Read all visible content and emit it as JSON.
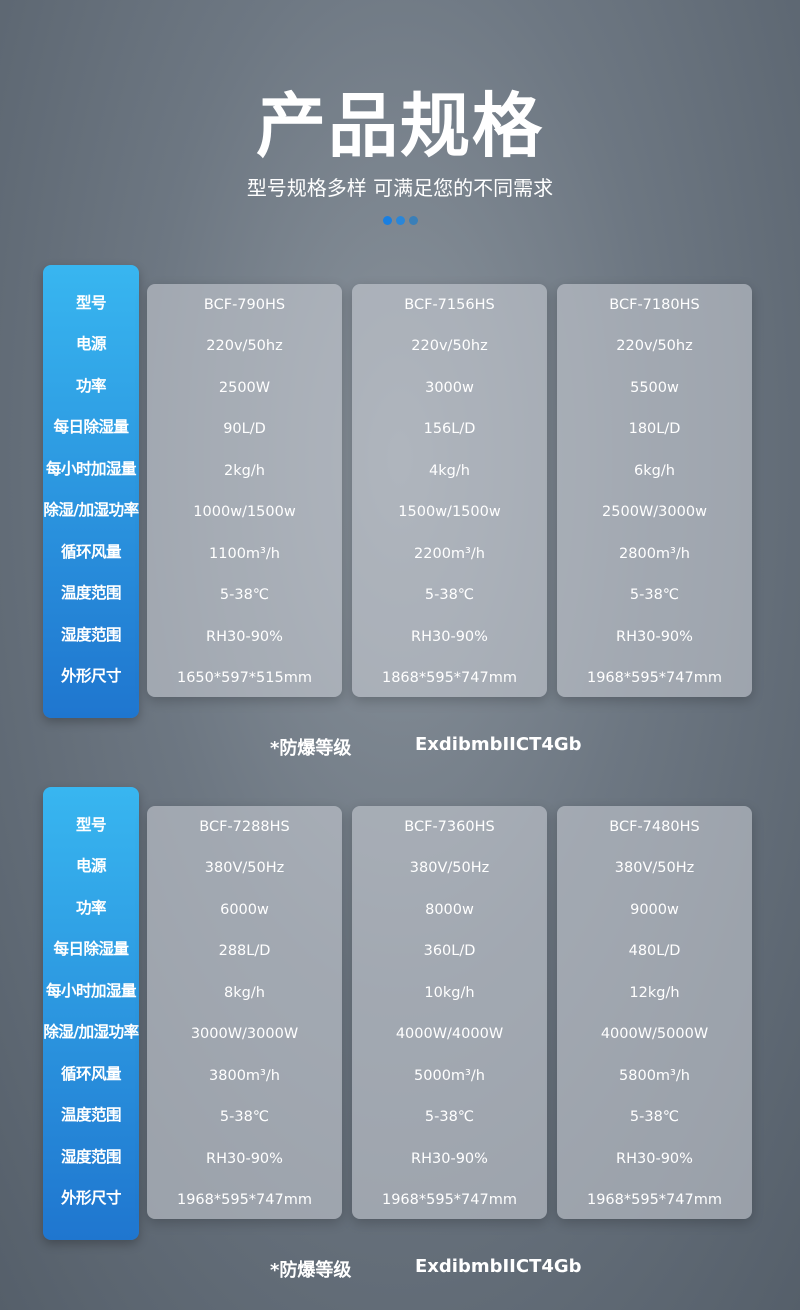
{
  "header": {
    "title": "产品规格",
    "subtitle": "型号规格多样 可满足您的不同需求",
    "dot_colors": [
      "#1a7fe0",
      "#2a86d8",
      "#3a7fb8"
    ]
  },
  "row_labels": [
    "型号",
    "电源",
    "功率",
    "每日除湿量",
    "每小时加湿量",
    "除湿/加湿功率",
    "循环风量",
    "温度范围",
    "湿度范围",
    "外形尺寸"
  ],
  "tables": [
    {
      "models": [
        [
          "BCF-790HS",
          "220v/50hz",
          "2500W",
          "90L/D",
          "2kg/h",
          "1000w/1500w",
          "1100m³/h",
          "5-38℃",
          "RH30-90%",
          "1650*597*515mm"
        ],
        [
          "BCF-7156HS",
          "220v/50hz",
          "3000w",
          "156L/D",
          "4kg/h",
          "1500w/1500w",
          "2200m³/h",
          "5-38℃",
          "RH30-90%",
          "1868*595*747mm"
        ],
        [
          "BCF-7180HS",
          "220v/50hz",
          "5500w",
          "180L/D",
          "6kg/h",
          "2500W/3000w",
          "2800m³/h",
          "5-38℃",
          "RH30-90%",
          "1968*595*747mm"
        ]
      ],
      "note_label": "*防爆等级",
      "note_value": "ExdibmbIICT4Gb"
    },
    {
      "models": [
        [
          "BCF-7288HS",
          "380V/50Hz",
          "6000w",
          "288L/D",
          "8kg/h",
          "3000W/3000W",
          "3800m³/h",
          "5-38℃",
          "RH30-90%",
          "1968*595*747mm"
        ],
        [
          "BCF-7360HS",
          "380V/50Hz",
          "8000w",
          "360L/D",
          "10kg/h",
          "4000W/4000W",
          "5000m³/h",
          "5-38℃",
          "RH30-90%",
          "1968*595*747mm"
        ],
        [
          "BCF-7480HS",
          "380V/50Hz",
          "9000w",
          "480L/D",
          "12kg/h",
          "4000W/5000W",
          "5800m³/h",
          "5-38℃",
          "RH30-90%",
          "1968*595*747mm"
        ]
      ],
      "note_label": "*防爆等级",
      "note_value": "ExdibmbIICT4Gb"
    }
  ]
}
